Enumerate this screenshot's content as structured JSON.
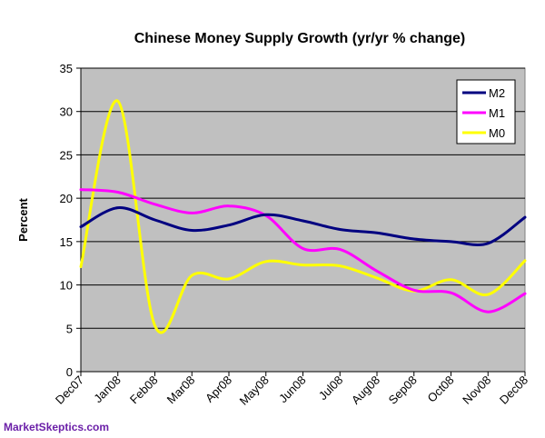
{
  "chart_data": {
    "type": "line",
    "title": "Chinese Money Supply Growth (yr/yr % change)",
    "xlabel": "",
    "ylabel": "Percent",
    "ylim": [
      0,
      35
    ],
    "yticks": [
      0,
      5,
      10,
      15,
      20,
      25,
      30,
      35
    ],
    "categories": [
      "Dec07",
      "Jan08",
      "Feb08",
      "Mar08",
      "Apr08",
      "May08",
      "Jun08",
      "Jul08",
      "Aug08",
      "Sep08",
      "Oct08",
      "Nov08",
      "Dec08"
    ],
    "grid": "horizontal",
    "legend_position": "top-right",
    "series": [
      {
        "name": "M2",
        "color": "#000080",
        "values": [
          16.7,
          18.9,
          17.5,
          16.3,
          16.9,
          18.1,
          17.4,
          16.4,
          16.0,
          15.3,
          15.0,
          14.8,
          17.8
        ]
      },
      {
        "name": "M1",
        "color": "#ff00ff",
        "values": [
          21.0,
          20.7,
          19.3,
          18.3,
          19.1,
          18.0,
          14.2,
          14.1,
          11.6,
          9.4,
          9.1,
          6.9,
          9.0
        ]
      },
      {
        "name": "M0",
        "color": "#ffff00",
        "values": [
          12.1,
          31.2,
          5.3,
          11.1,
          10.7,
          12.7,
          12.3,
          12.2,
          10.8,
          9.3,
          10.6,
          8.9,
          12.8
        ]
      }
    ]
  },
  "credit": "MarketSkeptics.com"
}
